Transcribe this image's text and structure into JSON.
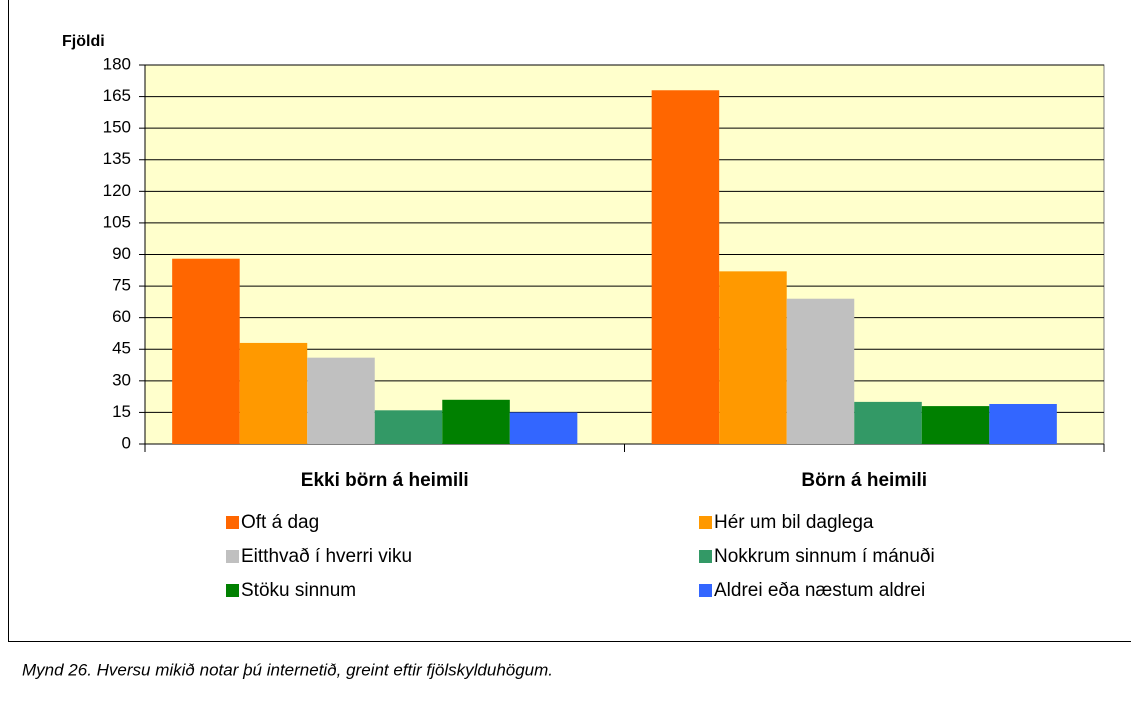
{
  "chart_data": {
    "type": "bar",
    "y_label": "Fjöldi",
    "categories": [
      "Ekki börn á heimili",
      "Börn á heimili"
    ],
    "series": [
      {
        "name": "Oft á dag",
        "color": "#ff6600",
        "values": [
          88,
          168
        ]
      },
      {
        "name": "Hér um bil daglega",
        "color": "#ff9900",
        "values": [
          48,
          82
        ]
      },
      {
        "name": "Eitthvað í hverri viku",
        "color": "#c0c0c0",
        "values": [
          41,
          69
        ]
      },
      {
        "name": "Nokkrum sinnum í mánuði",
        "color": "#339966",
        "values": [
          16,
          20
        ]
      },
      {
        "name": "Stöku sinnum",
        "color": "#008000",
        "values": [
          21,
          18
        ]
      },
      {
        "name": "Aldrei eða næstum aldrei",
        "color": "#3366ff",
        "values": [
          15,
          19
        ]
      }
    ],
    "ylim": [
      0,
      180
    ],
    "yticks": [
      0,
      15,
      30,
      45,
      60,
      75,
      90,
      105,
      120,
      135,
      150,
      165,
      180
    ],
    "grid": true,
    "plot_background": "#ffffcc",
    "caption": "Mynd 26.  Hversu mikið notar þú internetið, greint eftir fjölskylduhögum."
  }
}
